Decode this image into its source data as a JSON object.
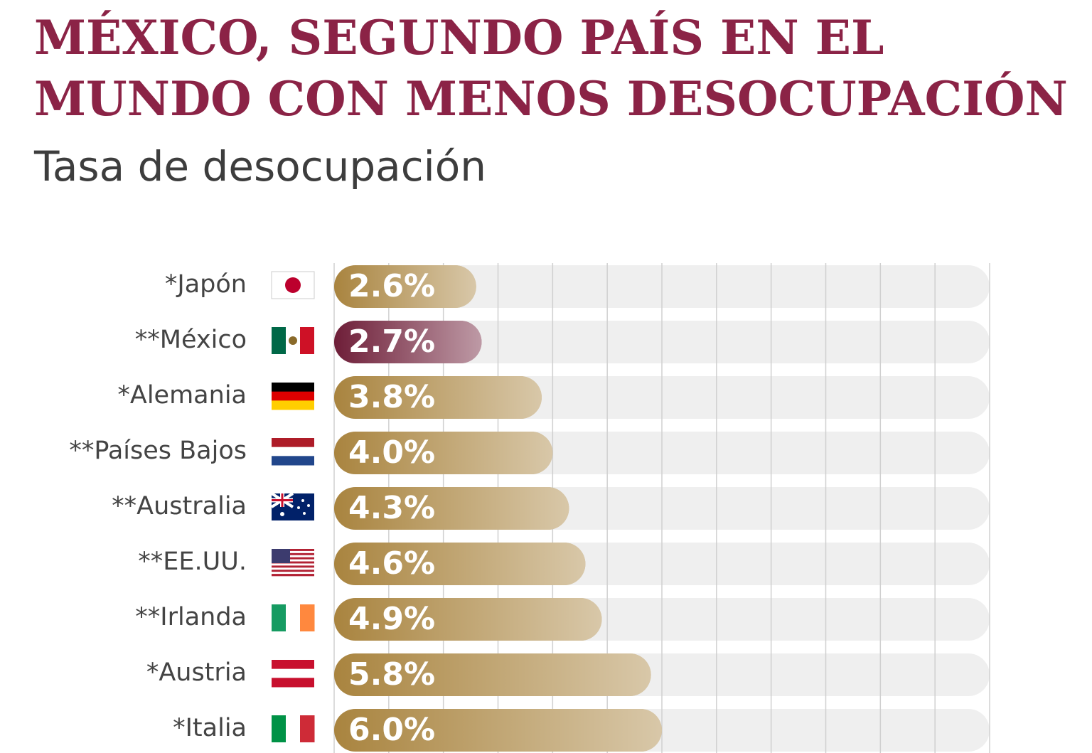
{
  "chart_data": {
    "type": "barh",
    "title": [
      "MÉXICO, SEGUNDO PAÍS EN EL",
      "MUNDO CON MENOS DESOCUPACIÓN"
    ],
    "subtitle": "Tasa de desocupación",
    "categories": [
      "*Japón",
      "**México",
      "*Alemania",
      "**Países Bajos",
      "**Australia",
      "**EE.UU.",
      "**Irlanda",
      "*Austria",
      "*Italia"
    ],
    "values": [
      2.6,
      2.7,
      3.8,
      4.0,
      4.3,
      4.6,
      4.9,
      5.8,
      6.0
    ],
    "value_labels": [
      "2.6%",
      "2.7%",
      "3.8%",
      "4.0%",
      "4.3%",
      "4.6%",
      "4.9%",
      "5.8%",
      "6.0%"
    ],
    "colors": [
      "#a9843f",
      "#6e1e38",
      "#a9843f",
      "#a9843f",
      "#a9843f",
      "#a9843f",
      "#a9843f",
      "#a9843f",
      "#a9843f"
    ],
    "xlim": [
      0,
      12
    ],
    "xticks": [
      0,
      1,
      2,
      3,
      4,
      5,
      6,
      7,
      8,
      9,
      10,
      11,
      12
    ],
    "grid": true
  }
}
